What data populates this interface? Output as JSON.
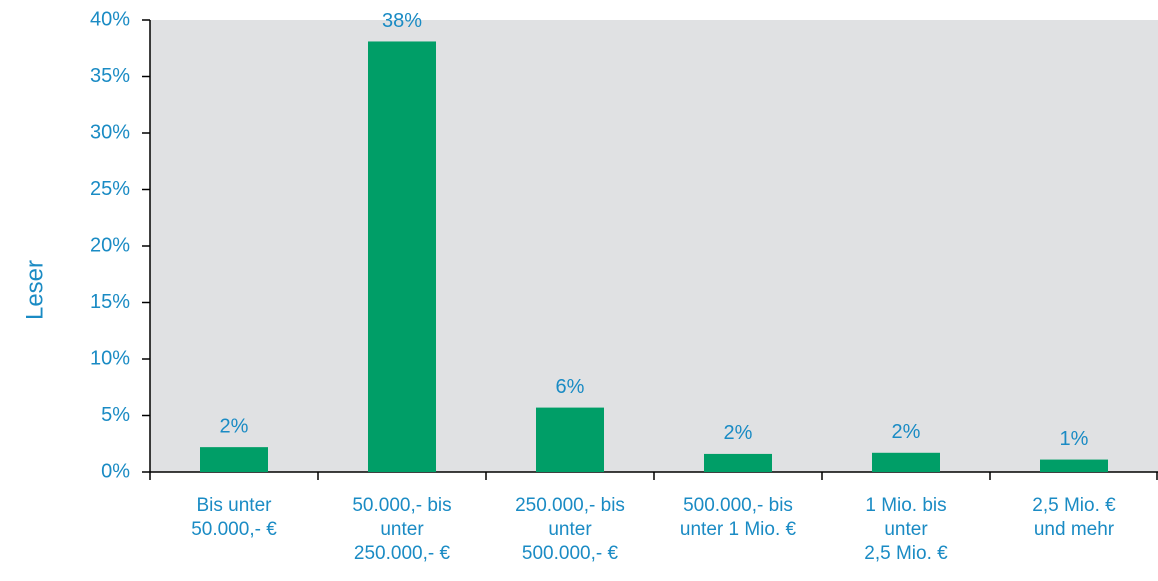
{
  "chart_data": {
    "type": "bar",
    "y_label": "Leser",
    "categories": [
      "Bis unter\n50.000,- €",
      "50.000,- bis\nunter\n250.000,- €",
      "250.000,- bis\nunter\n500.000,- €",
      "500.000,- bis\nunter 1 Mio. €",
      "1 Mio. bis\nunter\n2,5 Mio. €",
      "2,5 Mio. €\nund mehr"
    ],
    "values": [
      2.2,
      38.1,
      5.7,
      1.6,
      1.7,
      1.1
    ],
    "value_labels": [
      "2%",
      "38%",
      "6%",
      "2%",
      "2%",
      "1%"
    ],
    "color": "#009e67",
    "ylim": [
      0,
      40
    ],
    "yticks": [
      {
        "value": 0,
        "label": "0%"
      },
      {
        "value": 5,
        "label": "5%"
      },
      {
        "value": 10,
        "label": "10%"
      },
      {
        "value": 15,
        "label": "15%"
      },
      {
        "value": 20,
        "label": "20%"
      },
      {
        "value": 25,
        "label": "25%"
      },
      {
        "value": 30,
        "label": "30%"
      },
      {
        "value": 35,
        "label": "35%"
      },
      {
        "value": 40,
        "label": "40%"
      }
    ],
    "grid": false
  }
}
